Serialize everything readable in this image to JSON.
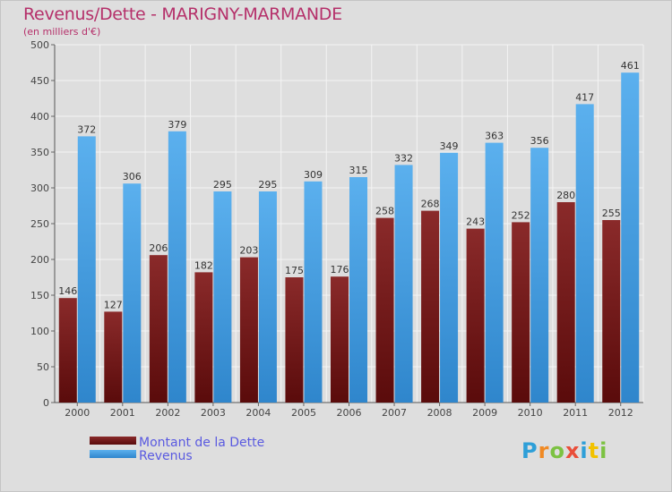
{
  "header": {
    "title": "Revenus/Dette - MARIGNY-MARMANDE",
    "subtitle": "(en milliers d'€)"
  },
  "logo": {
    "text": "Proxiti",
    "letters": [
      {
        "ch": "P",
        "color": "#2e9fd8"
      },
      {
        "ch": "r",
        "color": "#f08a24"
      },
      {
        "ch": "o",
        "color": "#7cc242"
      },
      {
        "ch": "x",
        "color": "#e94e3a"
      },
      {
        "ch": "i",
        "color": "#2e9fd8"
      },
      {
        "ch": "t",
        "color": "#f2c200"
      },
      {
        "ch": "i",
        "color": "#7cc242"
      }
    ]
  },
  "chart_data": {
    "type": "bar",
    "title": "Revenus/Dette - MARIGNY-MARMANDE",
    "subtitle": "(en milliers d'€)",
    "categories": [
      "2000",
      "2001",
      "2002",
      "2003",
      "2004",
      "2005",
      "2006",
      "2007",
      "2008",
      "2009",
      "2010",
      "2011",
      "2012"
    ],
    "series": [
      {
        "name": "Montant de la Dette",
        "color": "#7a1c1c",
        "values": [
          146,
          127,
          206,
          182,
          203,
          175,
          176,
          258,
          268,
          243,
          252,
          280,
          255
        ]
      },
      {
        "name": "Revenus",
        "color": "#4aa3e6",
        "values": [
          372,
          306,
          379,
          295,
          295,
          309,
          315,
          332,
          349,
          363,
          356,
          417,
          461
        ]
      }
    ],
    "ylim": [
      0,
      500
    ],
    "yticks": [
      0,
      50,
      100,
      150,
      200,
      250,
      300,
      350,
      400,
      450,
      500
    ],
    "grid": true,
    "legend_position": "bottom-left"
  }
}
